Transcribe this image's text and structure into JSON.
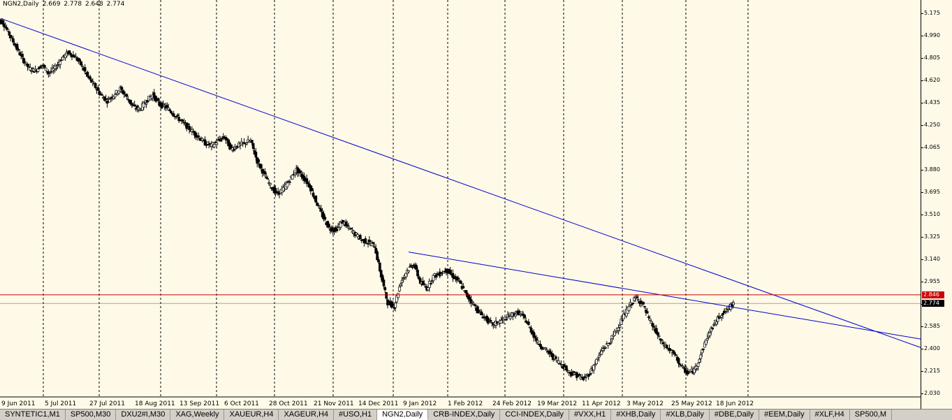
{
  "header": {
    "symbol": "NGN2,Daily",
    "open": "2.669",
    "high": "2.778",
    "low": "2.648",
    "close": "2.774"
  },
  "chart_data": {
    "type": "candlestick",
    "symbol": "NGN2,Daily",
    "ylim": [
      2.03,
      5.23
    ],
    "y_ticks": [
      "5.175",
      "4.990",
      "4.805",
      "4.620",
      "4.435",
      "4.250",
      "4.065",
      "3.880",
      "3.695",
      "3.510",
      "3.325",
      "3.140",
      "2.955",
      "2.770",
      "2.585",
      "2.400",
      "2.215",
      "2.030"
    ],
    "x_tick_labels": [
      "9 Jun 2011",
      "5 Jul 2011",
      "27 Jul 2011",
      "18 Aug 2011",
      "13 Sep 2011",
      "6 Oct 2011",
      "28 Oct 2011",
      "21 Nov 2011",
      "14 Dec 2011",
      "9 Jan 2012",
      "1 Feb 2012",
      "24 Feb 2012",
      "19 Mar 2012",
      "11 Apr 2012",
      "3 May 2012",
      "25 May 2012",
      "18 Jun 2012"
    ],
    "close_path": [
      5.1,
      5.0,
      4.9,
      4.8,
      4.72,
      4.7,
      4.75,
      4.68,
      4.72,
      4.8,
      4.85,
      4.82,
      4.75,
      4.65,
      4.58,
      4.5,
      4.45,
      4.5,
      4.55,
      4.48,
      4.4,
      4.38,
      4.45,
      4.5,
      4.42,
      4.4,
      4.35,
      4.3,
      4.25,
      4.2,
      4.15,
      4.1,
      4.08,
      4.12,
      4.15,
      4.05,
      4.08,
      4.1,
      4.12,
      3.95,
      3.85,
      3.75,
      3.68,
      3.72,
      3.8,
      3.88,
      3.82,
      3.75,
      3.62,
      3.5,
      3.4,
      3.38,
      3.45,
      3.4,
      3.35,
      3.3,
      3.28,
      3.25,
      3.0,
      2.78,
      2.75,
      2.95,
      3.05,
      3.1,
      2.95,
      2.9,
      3.0,
      3.02,
      3.05,
      3.0,
      2.95,
      2.85,
      2.78,
      2.7,
      2.65,
      2.6,
      2.62,
      2.65,
      2.68,
      2.7,
      2.65,
      2.55,
      2.45,
      2.4,
      2.35,
      2.3,
      2.25,
      2.2,
      2.18,
      2.15,
      2.2,
      2.3,
      2.4,
      2.45,
      2.55,
      2.65,
      2.75,
      2.82,
      2.78,
      2.65,
      2.55,
      2.45,
      2.4,
      2.35,
      2.25,
      2.2,
      2.22,
      2.35,
      2.5,
      2.6,
      2.68,
      2.72,
      2.774
    ],
    "price_lines": [
      {
        "label": "2.846",
        "value": 2.846,
        "color": "#cc0000"
      },
      {
        "label": "2.774",
        "value": 2.774,
        "color": "#000000"
      }
    ],
    "trendlines": [
      {
        "from": [
          "9 Jun 2011",
          5.13
        ],
        "to": [
          "end",
          2.41
        ],
        "color": "#0000cc"
      },
      {
        "from": [
          "9 Jan 2012",
          3.2
        ],
        "to": [
          "end",
          2.48
        ],
        "color": "#0000cc"
      }
    ],
    "grid": "vertical dashed"
  },
  "tabs": [
    {
      "label": "SYNTETIC1,M1",
      "active": false
    },
    {
      "label": "SP500,M30",
      "active": false
    },
    {
      "label": "DXU2#I,M30",
      "active": false
    },
    {
      "label": "XAG,Weekly",
      "active": false
    },
    {
      "label": "XAUEUR,H4",
      "active": false
    },
    {
      "label": "XAGEUR,H4",
      "active": false
    },
    {
      "label": "#USO,H1",
      "active": false
    },
    {
      "label": "NGN2,Daily",
      "active": true
    },
    {
      "label": "CRB-INDEX,Daily",
      "active": false
    },
    {
      "label": "CCI-INDEX,Daily",
      "active": false
    },
    {
      "label": "#VXX,H1",
      "active": false
    },
    {
      "label": "#XHB,Daily",
      "active": false
    },
    {
      "label": "#XLB,Daily",
      "active": false
    },
    {
      "label": "#DBE,Daily",
      "active": false
    },
    {
      "label": "#EEM,Daily",
      "active": false
    },
    {
      "label": "#XLF,H4",
      "active": false
    },
    {
      "label": "SP500,M",
      "active": false
    }
  ],
  "colors": {
    "background": "#fffae8",
    "trendline": "#0000cc",
    "bid_line": "#cc0000",
    "candle": "#000000"
  }
}
